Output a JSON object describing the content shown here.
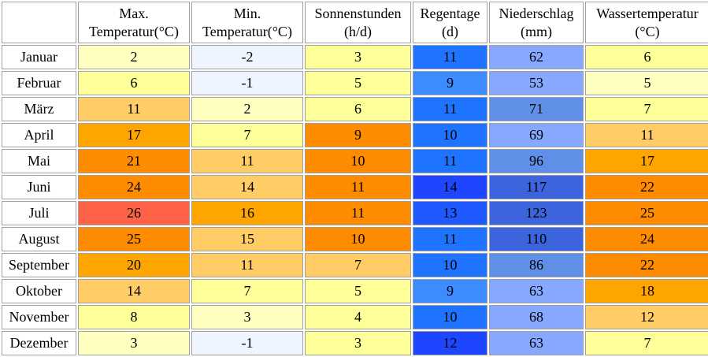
{
  "columns": [
    {
      "line1": "Max.",
      "line2": "Temperatur(°C)"
    },
    {
      "line1": "Min.",
      "line2": "Temperatur(°C)"
    },
    {
      "line1": "Sonnenstunden",
      "line2": "(h/d)"
    },
    {
      "line1": "Regentage",
      "line2": "(d)"
    },
    {
      "line1": "Niederschlag",
      "line2": "(mm)"
    },
    {
      "line1": "Wassertemperatur",
      "line2": "(°C)"
    }
  ],
  "rows": [
    {
      "month": "Januar",
      "values": [
        "2",
        "-2",
        "3",
        "11",
        "62",
        "6"
      ],
      "colors": [
        "#ffffc0",
        "#eef5ff",
        "#ffff99",
        "#1e73ff",
        "#86a9ff",
        "#ffff99"
      ]
    },
    {
      "month": "Februar",
      "values": [
        "6",
        "-1",
        "5",
        "9",
        "53",
        "5"
      ],
      "colors": [
        "#ffff99",
        "#eef5ff",
        "#ffff99",
        "#3c8cff",
        "#86a9ff",
        "#ffffc0"
      ]
    },
    {
      "month": "März",
      "values": [
        "11",
        "2",
        "6",
        "11",
        "71",
        "7"
      ],
      "colors": [
        "#ffcc66",
        "#ffffc0",
        "#ffff99",
        "#1e73ff",
        "#5f8fe6",
        "#ffff99"
      ]
    },
    {
      "month": "April",
      "values": [
        "17",
        "7",
        "9",
        "10",
        "69",
        "11"
      ],
      "colors": [
        "#ffa500",
        "#ffff99",
        "#ff8c00",
        "#1e73ff",
        "#86a9ff",
        "#ffcc66"
      ]
    },
    {
      "month": "Mai",
      "values": [
        "21",
        "11",
        "10",
        "11",
        "96",
        "17"
      ],
      "colors": [
        "#ff8c00",
        "#ffcc66",
        "#ff8c00",
        "#1e73ff",
        "#5f8fe6",
        "#ffa500"
      ]
    },
    {
      "month": "Juni",
      "values": [
        "24",
        "14",
        "11",
        "14",
        "117",
        "22"
      ],
      "colors": [
        "#ff8c00",
        "#ffcc66",
        "#ff8c00",
        "#1e46ff",
        "#3c64dc",
        "#ff8c00"
      ]
    },
    {
      "month": "Juli",
      "values": [
        "26",
        "16",
        "11",
        "13",
        "123",
        "25"
      ],
      "colors": [
        "#ff6347",
        "#ffa500",
        "#ff8c00",
        "#1e5aff",
        "#3c64dc",
        "#ff8c00"
      ]
    },
    {
      "month": "August",
      "values": [
        "25",
        "15",
        "10",
        "11",
        "110",
        "24"
      ],
      "colors": [
        "#ff8c00",
        "#ffcc66",
        "#ff8c00",
        "#1e73ff",
        "#3c64dc",
        "#ff8c00"
      ]
    },
    {
      "month": "September",
      "values": [
        "20",
        "11",
        "7",
        "10",
        "86",
        "22"
      ],
      "colors": [
        "#ffa500",
        "#ffcc66",
        "#ffcc66",
        "#1e73ff",
        "#5f8fe6",
        "#ff8c00"
      ]
    },
    {
      "month": "Oktober",
      "values": [
        "14",
        "7",
        "5",
        "9",
        "63",
        "18"
      ],
      "colors": [
        "#ffcc66",
        "#ffff99",
        "#ffff99",
        "#3c8cff",
        "#86a9ff",
        "#ffa500"
      ]
    },
    {
      "month": "November",
      "values": [
        "8",
        "3",
        "4",
        "10",
        "68",
        "12"
      ],
      "colors": [
        "#ffff99",
        "#ffffc0",
        "#ffff99",
        "#1e73ff",
        "#86a9ff",
        "#ffcc66"
      ]
    },
    {
      "month": "Dezember",
      "values": [
        "3",
        "-1",
        "3",
        "12",
        "63",
        "7"
      ],
      "colors": [
        "#ffffc0",
        "#eef5ff",
        "#ffff99",
        "#1e46ff",
        "#86a9ff",
        "#ffff99"
      ]
    }
  ]
}
